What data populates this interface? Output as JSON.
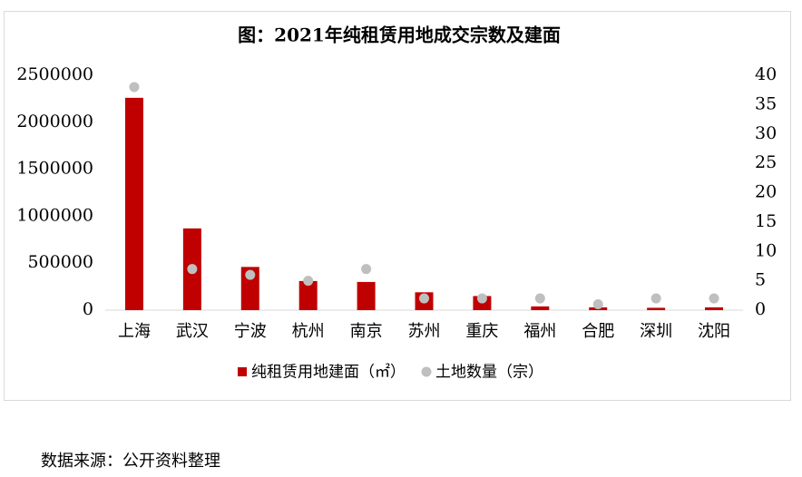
{
  "chart_data": {
    "type": "bar",
    "title": "图：2021年纯租赁用地成交宗数及建面",
    "categories": [
      "上海",
      "武汉",
      "宁波",
      "杭州",
      "南京",
      "苏州",
      "重庆",
      "福州",
      "合肥",
      "深圳",
      "沈阳"
    ],
    "series": [
      {
        "name": "纯租赁用地建面（㎡）",
        "color": "#c00000",
        "type": "bar",
        "values": [
          2260000,
          870000,
          460000,
          310000,
          300000,
          190000,
          150000,
          40000,
          30000,
          25000,
          30000
        ]
      },
      {
        "name": "土地数量（宗）",
        "color": "#bfbfbf",
        "type": "scatter",
        "axis": "y2",
        "values": [
          38,
          7,
          6,
          5,
          7,
          2,
          2,
          2,
          1,
          2,
          2
        ]
      }
    ],
    "ylim": [
      0,
      2500000
    ],
    "yticks": [
      0,
      500000,
      1000000,
      1500000,
      2000000,
      2500000
    ],
    "y2lim": [
      0,
      40
    ],
    "y2ticks": [
      0,
      5,
      10,
      15,
      20,
      25,
      30,
      35,
      40
    ],
    "legend": "bottom"
  },
  "source": "数据来源：公开资料整理"
}
